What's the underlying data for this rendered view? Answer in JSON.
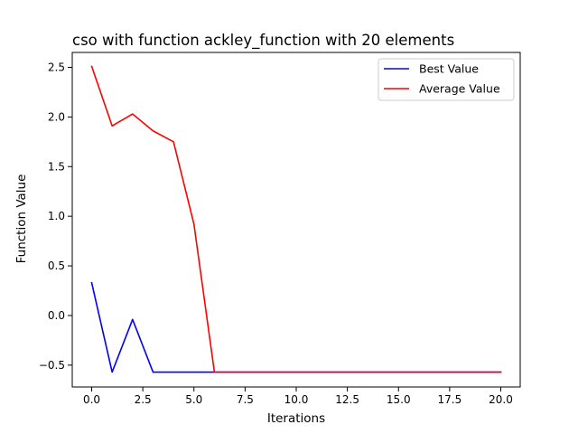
{
  "chart_data": {
    "type": "line",
    "title": "cso with function ackley_function with 20 elements",
    "xlabel": "Iterations",
    "ylabel": "Function Value",
    "xlim": [
      -0.95,
      20.95
    ],
    "ylim": [
      -0.72,
      2.65
    ],
    "xticks": [
      0,
      2.5,
      5,
      7.5,
      10,
      12.5,
      15,
      17.5,
      20
    ],
    "xtick_labels": [
      "0.0",
      "2.5",
      "5.0",
      "7.5",
      "10.0",
      "12.5",
      "15.0",
      "17.5",
      "20.0"
    ],
    "yticks": [
      -0.5,
      0,
      0.5,
      1,
      1.5,
      2,
      2.5
    ],
    "ytick_labels": [
      "−0.5",
      "0.0",
      "0.5",
      "1.0",
      "1.5",
      "2.0",
      "2.5"
    ],
    "grid": false,
    "legend_position": "top-right",
    "x": [
      0,
      1,
      2,
      3,
      4,
      5,
      6,
      7,
      8,
      9,
      10,
      11,
      12,
      13,
      14,
      15,
      16,
      17,
      18,
      19,
      20
    ],
    "series": [
      {
        "name": "Best Value",
        "color": "#0000ff",
        "values": [
          0.33,
          -0.57,
          -0.04,
          -0.57,
          -0.57,
          -0.57,
          -0.57,
          -0.57,
          -0.57,
          -0.57,
          -0.57,
          -0.57,
          -0.57,
          -0.57,
          -0.57,
          -0.57,
          -0.57,
          -0.57,
          -0.57,
          -0.57,
          -0.57
        ]
      },
      {
        "name": "Average Value",
        "color": "#ff0000",
        "values": [
          2.51,
          1.91,
          2.03,
          1.86,
          1.75,
          0.92,
          -0.57,
          -0.57,
          -0.57,
          -0.57,
          -0.57,
          -0.57,
          -0.57,
          -0.57,
          -0.57,
          -0.57,
          -0.57,
          -0.57,
          -0.57,
          -0.57,
          -0.57
        ]
      }
    ]
  }
}
